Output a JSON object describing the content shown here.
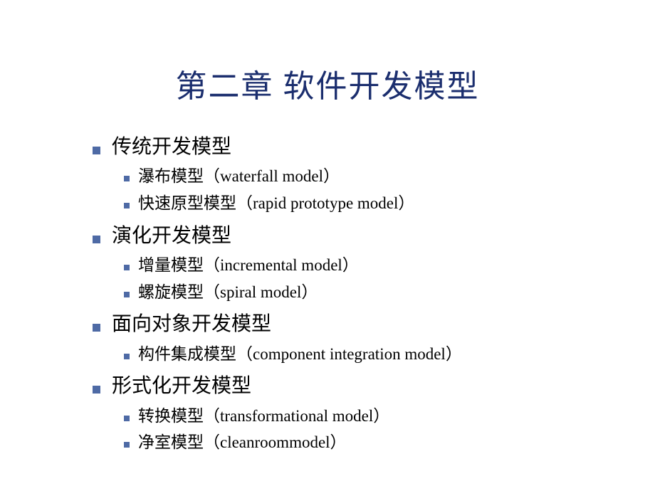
{
  "title": "第二章  软件开发模型",
  "title_color": "#1b2e6e",
  "title_fontsize": 44,
  "bullet_color": "#4e6aa5",
  "body_color": "#000000",
  "l1_fontsize": 28,
  "l2_fontsize": 23,
  "sections": [
    {
      "heading": "传统开发模型",
      "items": [
        "瀑布模型（waterfall model）",
        "快速原型模型（rapid prototype model）"
      ]
    },
    {
      "heading": "演化开发模型",
      "items": [
        "增量模型（incremental model）",
        "螺旋模型（spiral model）"
      ]
    },
    {
      "heading": "面向对象开发模型",
      "items": [
        "构件集成模型（component integration model）"
      ]
    },
    {
      "heading": "形式化开发模型",
      "items": [
        "转换模型（transformational model）",
        "净室模型（cleanroommodel）"
      ]
    }
  ]
}
